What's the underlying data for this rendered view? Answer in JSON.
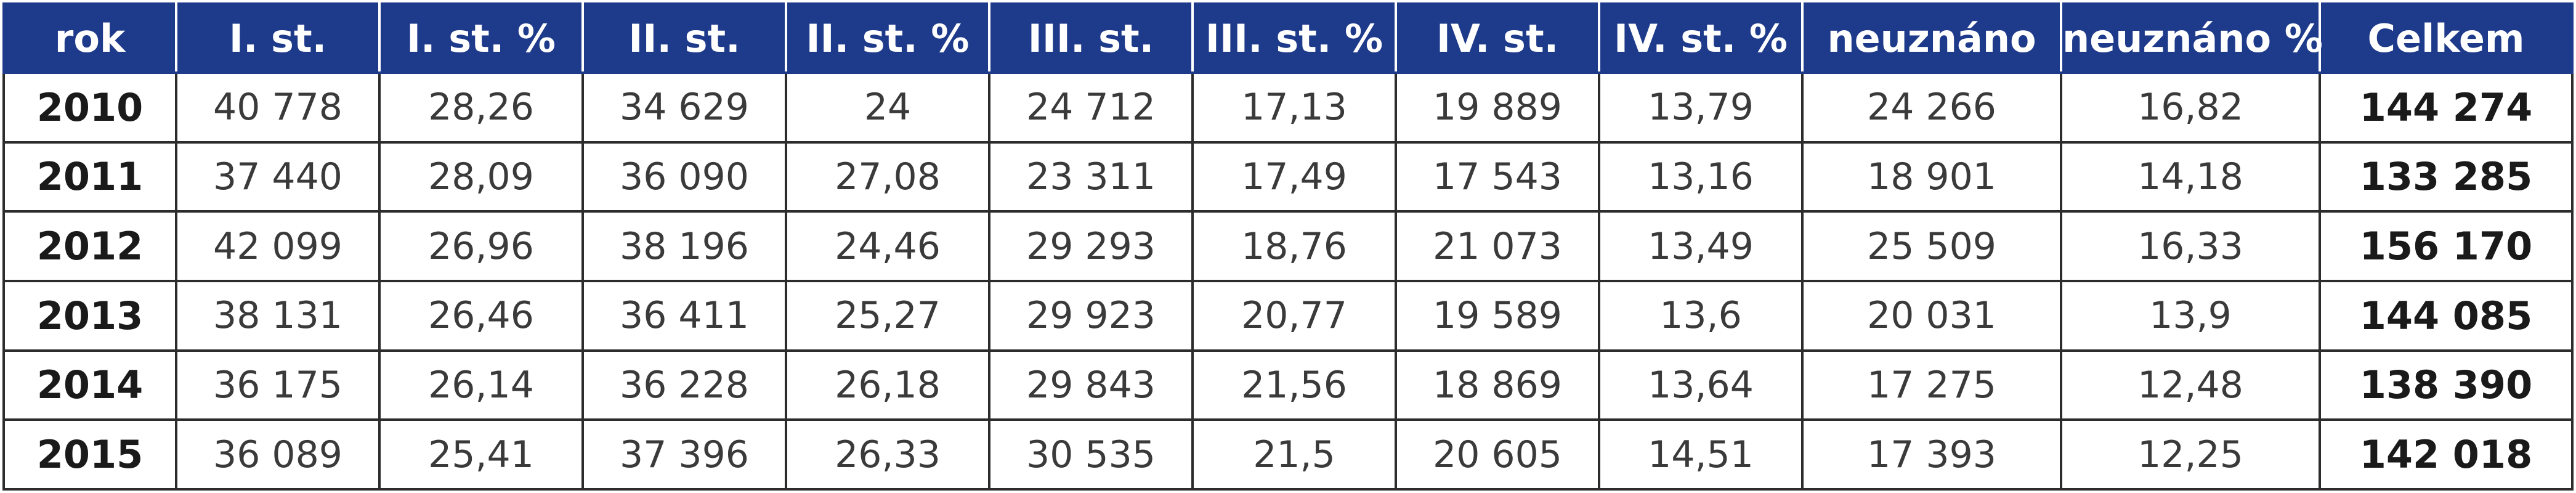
{
  "chart_data": {
    "type": "table",
    "columns": [
      "rok",
      "I. st.",
      "I. st. %",
      "II. st.",
      "II. st. %",
      "III. st.",
      "III. st. %",
      "IV. st.",
      "IV. st. %",
      "neuznáno",
      "neuznáno %",
      "Celkem"
    ],
    "rows": [
      [
        "2010",
        "40 778",
        "28,26",
        "34 629",
        "24",
        "24 712",
        "17,13",
        "19 889",
        "13,79",
        "24 266",
        "16,82",
        "144 274"
      ],
      [
        "2011",
        "37 440",
        "28,09",
        "36 090",
        "27,08",
        "23 311",
        "17,49",
        "17 543",
        "13,16",
        "18 901",
        "14,18",
        "133 285"
      ],
      [
        "2012",
        "42 099",
        "26,96",
        "38 196",
        "24,46",
        "29 293",
        "18,76",
        "21 073",
        "13,49",
        "25 509",
        "16,33",
        "156 170"
      ],
      [
        "2013",
        "38 131",
        "26,46",
        "36 411",
        "25,27",
        "29 923",
        "20,77",
        "19 589",
        "13,6",
        "20 031",
        "13,9",
        "144 085"
      ],
      [
        "2014",
        "36 175",
        "26,14",
        "36 228",
        "26,18",
        "29 843",
        "21,56",
        "18 869",
        "13,64",
        "17 275",
        "12,48",
        "138 390"
      ],
      [
        "2015",
        "36 089",
        "25,41",
        "37 396",
        "26,33",
        "30 535",
        "21,5",
        "20 605",
        "14,51",
        "17 393",
        "12,25",
        "142 018"
      ]
    ],
    "header_color": "#1e3a8a"
  }
}
